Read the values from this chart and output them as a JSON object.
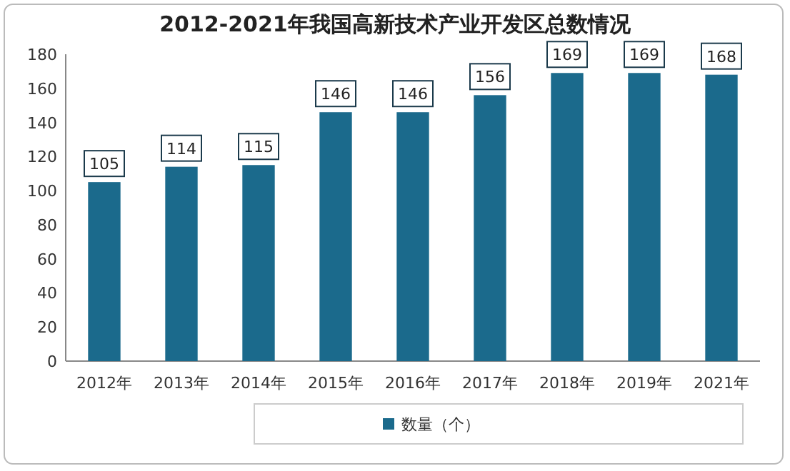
{
  "chart_data": {
    "type": "bar",
    "title": "2012-2021年我国高新技术产业开发区总数情况",
    "categories": [
      "2012年",
      "2013年",
      "2014年",
      "2015年",
      "2016年",
      "2017年",
      "2018年",
      "2019年",
      "2021年"
    ],
    "series": [
      {
        "name": "数量（个）",
        "color": "#1b6a8c",
        "values": [
          105,
          114,
          115,
          146,
          146,
          156,
          169,
          169,
          168
        ]
      }
    ],
    "ylim": [
      0,
      180
    ],
    "yticks": [
      0,
      20,
      40,
      60,
      80,
      100,
      120,
      140,
      160,
      180
    ],
    "data_labels": true,
    "legend": "bottom"
  }
}
